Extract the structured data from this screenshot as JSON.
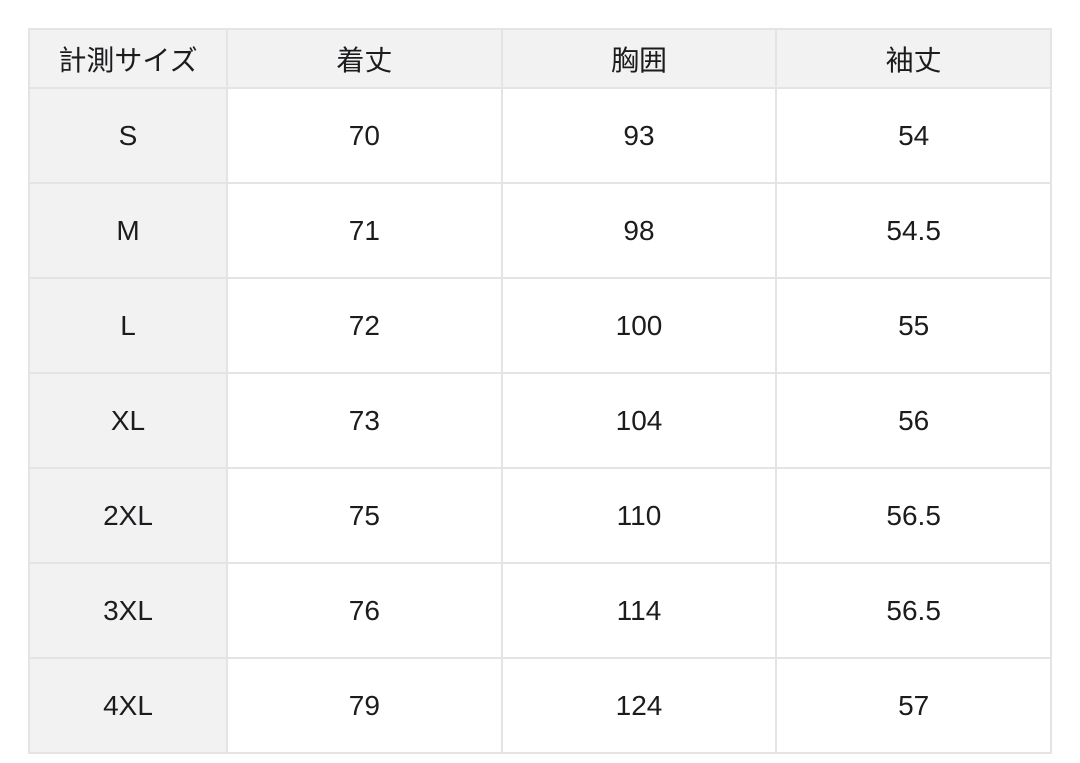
{
  "chart_data": {
    "type": "table",
    "columns": [
      "計測サイズ",
      "着丈",
      "胸囲",
      "袖丈"
    ],
    "rows": [
      {
        "size": "S",
        "values": [
          "70",
          "93",
          "54"
        ]
      },
      {
        "size": "M",
        "values": [
          "71",
          "98",
          "54.5"
        ]
      },
      {
        "size": "L",
        "values": [
          "72",
          "100",
          "55"
        ]
      },
      {
        "size": "XL",
        "values": [
          "73",
          "104",
          "56"
        ]
      },
      {
        "size": "2XL",
        "values": [
          "75",
          "110",
          "56.5"
        ]
      },
      {
        "size": "3XL",
        "values": [
          "76",
          "114",
          "56.5"
        ]
      },
      {
        "size": "4XL",
        "values": [
          "79",
          "124",
          "57"
        ]
      }
    ],
    "layout": {
      "legend": "none",
      "grid": "on"
    }
  },
  "colors": {
    "header_bg": "#f2f2f3",
    "body_bg": "#ffffff",
    "border": "#e4e4e6",
    "text": "#1c1c1e"
  }
}
